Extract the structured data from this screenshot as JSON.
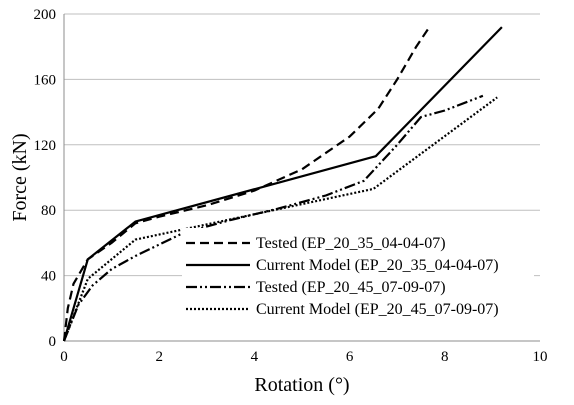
{
  "chart_data": {
    "type": "line",
    "xlabel": "Rotation (°)",
    "ylabel": "Force (kN)",
    "xlim": [
      0,
      10
    ],
    "ylim": [
      0,
      200
    ],
    "xticks": [
      "0",
      "2",
      "4",
      "6",
      "8",
      "10"
    ],
    "yticks": [
      "0",
      "40",
      "80",
      "120",
      "160",
      "200"
    ],
    "grid": "horizontal",
    "legend_position": "lower-right",
    "series": [
      {
        "name": "Tested (EP_20_35_04-04-07)",
        "style": "dashed",
        "x": [
          0,
          0.08,
          0.2,
          0.5,
          1.0,
          1.5,
          2.0,
          3.0,
          4.0,
          5.0,
          6.0,
          6.6,
          7.0,
          7.4,
          7.7
        ],
        "y": [
          0,
          20,
          35,
          50,
          60,
          72,
          76,
          83,
          92,
          105,
          125,
          142,
          160,
          180,
          193
        ]
      },
      {
        "name": "Current Model (EP_20_35_04-04-07)",
        "style": "solid",
        "x": [
          0,
          0.5,
          1.5,
          6.55,
          9.2
        ],
        "y": [
          0,
          50,
          73,
          113,
          192
        ]
      },
      {
        "name": "Tested (EP_20_45_07-09-07)",
        "style": "dash-dot-dot",
        "x": [
          0,
          0.3,
          0.6,
          1.0,
          1.5,
          2.5,
          3.5,
          4.5,
          5.5,
          6.3,
          7.0,
          7.5,
          8.0,
          8.8
        ],
        "y": [
          0,
          22,
          34,
          44,
          52,
          66,
          74,
          81,
          89,
          98,
          120,
          137,
          141,
          150
        ]
      },
      {
        "name": "Current Model (EP_20_45_07-09-07)",
        "style": "dotted",
        "x": [
          0,
          0.5,
          1.5,
          6.5,
          9.1
        ],
        "y": [
          0,
          38,
          62,
          93,
          149
        ]
      }
    ]
  }
}
